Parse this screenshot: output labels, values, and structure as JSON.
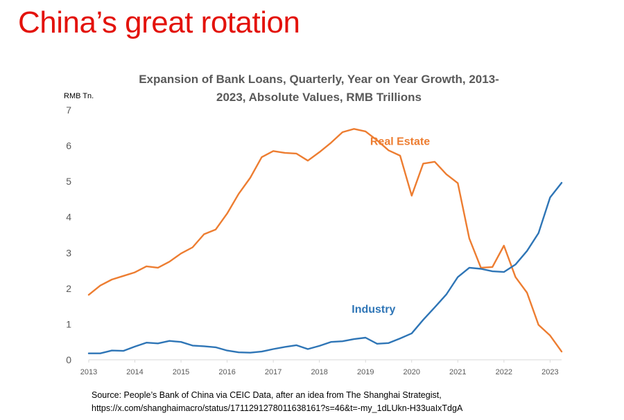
{
  "slide": {
    "title": "China’s great rotation"
  },
  "source": {
    "line1": "Source: People’s Bank of China via CEIC Data, after an idea from The Shanghai Strategist,",
    "line2": "https://x.com/shanghaimacro/status/1711291278011638161?s=46&t=-my_1dLUkn-H33uaIxTdgA"
  },
  "chart_data": {
    "type": "line",
    "title_line1": "Expansion of  Bank Loans, Quarterly, Year on Year Growth, 2013-",
    "title_line2": "2023, Absolute Values,  RMB Trillions",
    "ylabel": "RMB Tn.",
    "xlabel": "",
    "ylim": [
      0,
      7
    ],
    "y_ticks": [
      "0",
      "1",
      "2",
      "3",
      "4",
      "5",
      "6",
      "7"
    ],
    "x_range": [
      2013.0,
      2023.25
    ],
    "x_ticks": [
      "2013",
      "2014",
      "2015",
      "2016",
      "2017",
      "2018",
      "2019",
      "2020",
      "2021",
      "2022",
      "2023"
    ],
    "grid": false,
    "legend": "inline labels",
    "x": [
      2013.0,
      2013.25,
      2013.5,
      2013.75,
      2014.0,
      2014.25,
      2014.5,
      2014.75,
      2015.0,
      2015.25,
      2015.5,
      2015.75,
      2016.0,
      2016.25,
      2016.5,
      2016.75,
      2017.0,
      2017.25,
      2017.5,
      2017.75,
      2018.0,
      2018.25,
      2018.5,
      2018.75,
      2019.0,
      2019.25,
      2019.5,
      2019.75,
      2020.0,
      2020.25,
      2020.5,
      2020.75,
      2021.0,
      2021.25,
      2021.5,
      2021.75,
      2022.0,
      2022.25,
      2022.5,
      2022.75,
      2023.0,
      2023.25
    ],
    "series": [
      {
        "name": "Real Estate",
        "color": "#ed7d31",
        "values": [
          1.82,
          2.08,
          2.25,
          2.35,
          2.45,
          2.62,
          2.58,
          2.75,
          2.98,
          3.15,
          3.52,
          3.65,
          4.1,
          4.65,
          5.1,
          5.68,
          5.85,
          5.8,
          5.78,
          5.58,
          5.82,
          6.08,
          6.38,
          6.47,
          6.4,
          6.15,
          5.87,
          5.72,
          4.6,
          5.5,
          5.55,
          5.2,
          4.95,
          3.4,
          2.58,
          2.6,
          3.2,
          2.32,
          1.88,
          0.98,
          0.68,
          0.23
        ]
      },
      {
        "name": "Industry",
        "color": "#2e75b6",
        "values": [
          0.18,
          0.18,
          0.26,
          0.25,
          0.37,
          0.48,
          0.46,
          0.53,
          0.5,
          0.4,
          0.38,
          0.35,
          0.26,
          0.21,
          0.2,
          0.23,
          0.3,
          0.36,
          0.41,
          0.3,
          0.39,
          0.5,
          0.52,
          0.58,
          0.62,
          0.45,
          0.47,
          0.6,
          0.74,
          1.12,
          1.47,
          1.83,
          2.32,
          2.58,
          2.55,
          2.48,
          2.46,
          2.67,
          3.05,
          3.55,
          4.55,
          4.96
        ]
      }
    ],
    "annotations": [
      {
        "text": "Real Estate",
        "color": "#ed7d31",
        "x": 2019.1,
        "y": 6.02
      },
      {
        "text": "Industry",
        "color": "#2e75b6",
        "x": 2018.7,
        "y": 1.32
      }
    ]
  }
}
